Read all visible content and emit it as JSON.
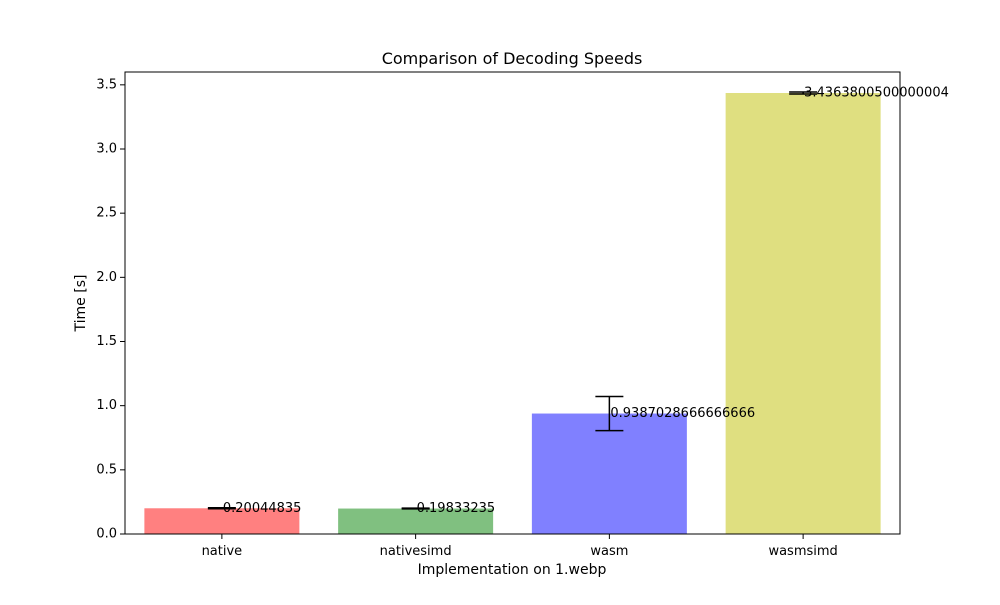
{
  "chart_data": {
    "type": "bar",
    "title": "Comparison of Decoding Speeds",
    "xlabel": "Implementation on 1.webp",
    "ylabel": "Time [s]",
    "categories": [
      "native",
      "nativesimd",
      "wasm",
      "wasmsimd"
    ],
    "values": [
      0.20044835,
      0.19833235,
      0.9387028666666666,
      3.4363800500000004
    ],
    "value_labels": [
      "0.20044835",
      "0.19833235",
      "0.9387028666666666",
      "3.4363800500000004"
    ],
    "errors": [
      0.004,
      0.003,
      0.133,
      0.008
    ],
    "colors": [
      "#ff8080",
      "#80c080",
      "#8080ff",
      "#dfdf80"
    ],
    "ylim": [
      0,
      3.6
    ],
    "yticks": [
      0.0,
      0.5,
      1.0,
      1.5,
      2.0,
      2.5,
      3.0,
      3.5
    ],
    "ytick_labels": [
      "0.0",
      "0.5",
      "1.0",
      "1.5",
      "2.0",
      "2.5",
      "3.0",
      "3.5"
    ],
    "grid": false,
    "legend": "none"
  }
}
